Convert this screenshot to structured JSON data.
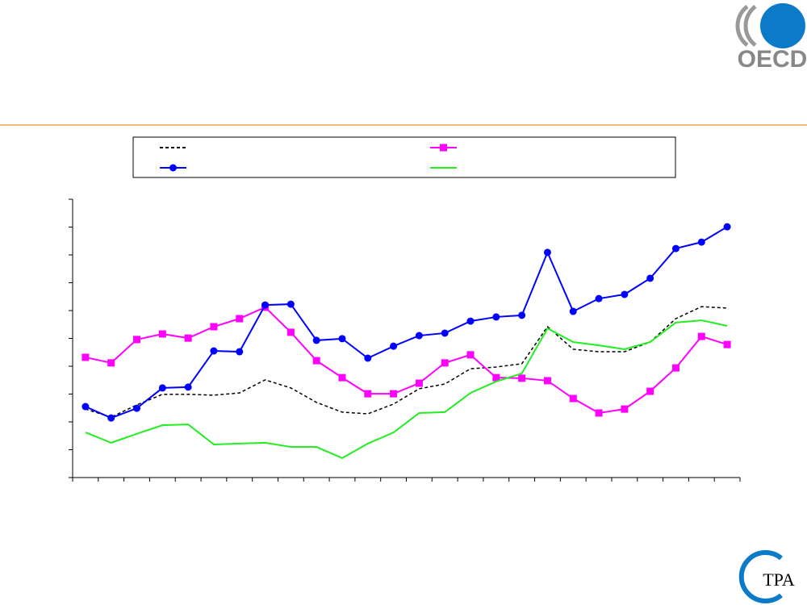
{
  "logos": {
    "oecd": "OECD",
    "tpa": "TPA"
  },
  "chart_data": {
    "type": "line",
    "categories": [
      null,
      null,
      null,
      null,
      null,
      null,
      null,
      null,
      null,
      null,
      null,
      null,
      null,
      null,
      null,
      null,
      null,
      null,
      null,
      null,
      null,
      null,
      null,
      null,
      null,
      null
    ],
    "ylim": [
      0,
      10
    ],
    "yticks": [
      0,
      1,
      2,
      3,
      4,
      5,
      6,
      7,
      8,
      9,
      10
    ],
    "series": [
      {
        "color": "#000000",
        "line_style": "dashed",
        "marker": "none",
        "values": [
          2.46,
          2.17,
          2.61,
          2.99,
          2.99,
          2.96,
          3.04,
          3.51,
          3.22,
          2.7,
          2.35,
          2.29,
          2.64,
          3.19,
          3.36,
          3.91,
          3.97,
          4.09,
          5.42,
          4.61,
          4.52,
          4.52,
          4.87,
          5.71,
          6.14,
          6.09
        ]
      },
      {
        "color": "#ff00ff",
        "line_style": "solid",
        "marker": "square",
        "values": [
          4.32,
          4.12,
          4.96,
          5.16,
          5.01,
          5.42,
          5.71,
          6.12,
          5.22,
          4.2,
          3.59,
          3.01,
          3.01,
          3.39,
          4.12,
          4.41,
          3.59,
          3.57,
          3.48,
          2.84,
          2.32,
          2.46,
          3.1,
          3.94,
          5.07,
          4.78
        ]
      },
      {
        "color": "#0000ff",
        "line_style": "solid",
        "marker": "circle",
        "values": [
          2.55,
          2.14,
          2.49,
          3.22,
          3.25,
          4.55,
          4.52,
          6.2,
          6.23,
          4.93,
          4.99,
          4.29,
          4.72,
          5.1,
          5.19,
          5.62,
          5.77,
          5.83,
          8.09,
          5.97,
          6.43,
          6.58,
          7.16,
          8.23,
          8.46,
          9.01
        ]
      },
      {
        "color": "#22ee22",
        "line_style": "solid",
        "marker": "none",
        "values": [
          1.62,
          1.25,
          1.57,
          1.88,
          1.91,
          1.19,
          1.22,
          1.25,
          1.1,
          1.1,
          0.7,
          1.22,
          1.62,
          2.32,
          2.35,
          3.04,
          3.45,
          3.74,
          5.36,
          4.87,
          4.75,
          4.61,
          4.87,
          5.57,
          5.65,
          5.45
        ]
      }
    ]
  }
}
